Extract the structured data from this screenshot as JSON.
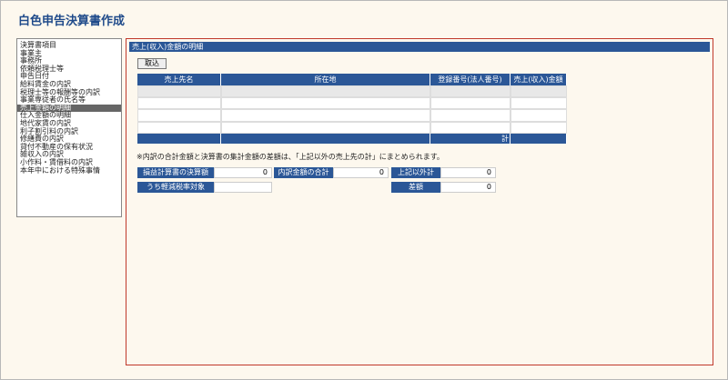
{
  "header": {
    "title": "白色申告決算書作成"
  },
  "sidebar": {
    "items": [
      "決算書項目",
      "事業主",
      "事務所",
      "依頼税理士等",
      "申告日付",
      "給料賃金の内訳",
      "税理士等の報酬等の内訳",
      "事業専従者の氏名等",
      "売上金額の明細",
      "仕入金額の明細",
      "地代家賃の内訳",
      "利子割引料の内訳",
      "修繕費の内訳",
      "貸付不動産の保有状況",
      "雑収入の内訳",
      "小作料・賃借料の内訳",
      "本年中における特殊事情"
    ],
    "selected": 8
  },
  "panel": {
    "title": "売上(収入)金額の明細",
    "import_button": "取込",
    "table": {
      "columns": [
        "売上先名",
        "所在地",
        "登録番号(法人番号)",
        "売上(収入)金額"
      ],
      "total_label": "計"
    },
    "note": "※内訳の合計金額と決算書の集計金額の差額は、「上記以外の売上先の計」にまとめられます。",
    "summary": {
      "pl_amount": {
        "label": "損益計算書の決算額",
        "value": 0
      },
      "breakdown_total": {
        "label": "内訳金額の合計",
        "value": 0
      },
      "other_total": {
        "label": "上記以外計",
        "value": 0
      },
      "reduced_rate": {
        "label": "うち軽減税率対象"
      },
      "difference": {
        "label": "差額",
        "value": 0
      }
    }
  }
}
